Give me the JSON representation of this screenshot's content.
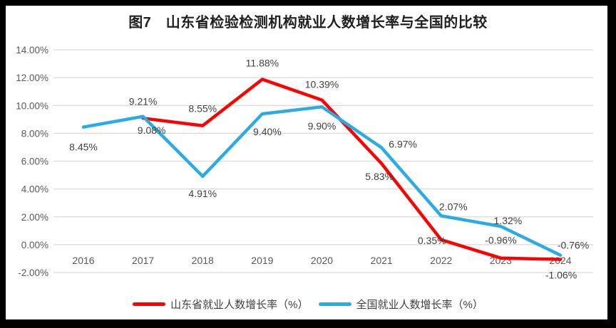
{
  "title": "图7　山东省检验检测机构就业人数增长率与全国的比较",
  "colors": {
    "shandong_line": "#fe0000",
    "national_line": "#29ace3",
    "gridline": "#d9d9d9",
    "axis_text": "#595959",
    "data_label_text": "#3f3f3f",
    "page_bg": "#ffffff",
    "frame_bg": "#000000"
  },
  "chart_data": {
    "type": "line",
    "title": "图7　山东省检验检测机构就业人数增长率与全国的比较",
    "categories": [
      "2016",
      "2017",
      "2018",
      "2019",
      "2020",
      "2021",
      "2022",
      "2023",
      "2024"
    ],
    "y_axis": {
      "min": -2,
      "max": 14,
      "step": 2,
      "tick_labels": [
        "14.00%",
        "12.00%",
        "10.00%",
        "8.00%",
        "6.00%",
        "4.00%",
        "2.00%",
        "0.00%",
        "-2.00%"
      ]
    },
    "grid": true,
    "legend_position": "bottom",
    "series": [
      {
        "name": "山东省就业人数增长率（%）",
        "color": "#fe0000",
        "values": [
          null,
          9.08,
          8.55,
          11.88,
          10.39,
          5.83,
          0.35,
          -0.96,
          -1.06
        ],
        "labels": [
          null,
          "9.08%",
          "8.55%",
          "11.88%",
          "10.39%",
          "5.83%",
          "0.35%",
          "-0.96%",
          "-1.06%"
        ],
        "label_offsets": [
          null,
          [
            12,
            17
          ],
          [
            0,
            -24
          ],
          [
            0,
            -23
          ],
          [
            0,
            -22
          ],
          [
            -3,
            18
          ],
          [
            -13,
            1
          ],
          [
            0,
            -25
          ],
          [
            1,
            22
          ]
        ]
      },
      {
        "name": "全国就业人数增长率（%）",
        "color": "#29ace3",
        "values": [
          8.45,
          9.21,
          4.91,
          9.4,
          9.9,
          6.97,
          2.07,
          1.32,
          -0.76
        ],
        "labels": [
          "8.45%",
          "9.21%",
          "4.91%",
          "9.40%",
          "9.90%",
          "6.97%",
          "2.07%",
          "1.32%",
          "-0.76%"
        ],
        "label_offsets": [
          [
            0,
            28
          ],
          [
            0,
            -21
          ],
          [
            0,
            24
          ],
          [
            7,
            25
          ],
          [
            0,
            27
          ],
          [
            30,
            -5
          ],
          [
            17,
            -13
          ],
          [
            10,
            -8
          ],
          [
            18,
            -14
          ]
        ]
      }
    ]
  },
  "legend": {
    "items": [
      {
        "label": "山东省就业人数增长率（%）",
        "color": "#fe0000"
      },
      {
        "label": "全国就业人数增长率（%）",
        "color": "#29ace3"
      }
    ]
  }
}
